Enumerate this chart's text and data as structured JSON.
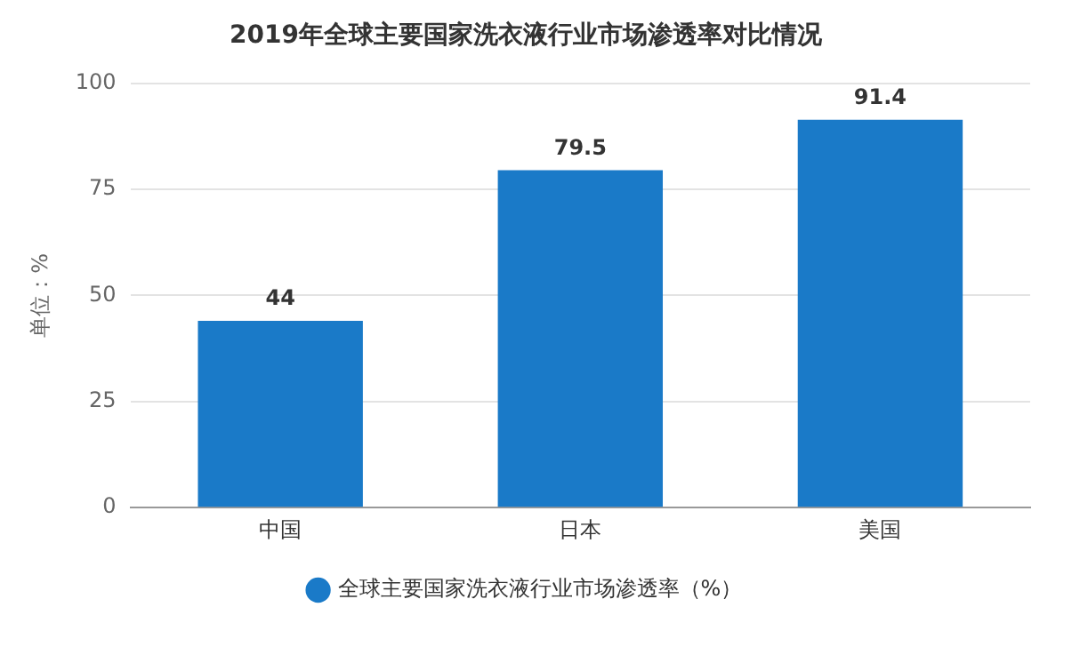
{
  "chart_data": {
    "type": "bar",
    "title": "2019年全球主要国家洗衣液行业市场渗透率对比情况",
    "ylabel": "单位：%",
    "categories": [
      "中国",
      "日本",
      "美国"
    ],
    "series": [
      {
        "name": "全球主要国家洗衣液行业市场渗透率（%）",
        "color": "#1a7ac8",
        "values": [
          44,
          79.5,
          91.4
        ]
      }
    ],
    "ylim": [
      0,
      100
    ],
    "yticks": [
      0,
      25,
      50,
      75,
      100
    ],
    "grid": "y",
    "legend": "bottom",
    "data_labels": true
  }
}
